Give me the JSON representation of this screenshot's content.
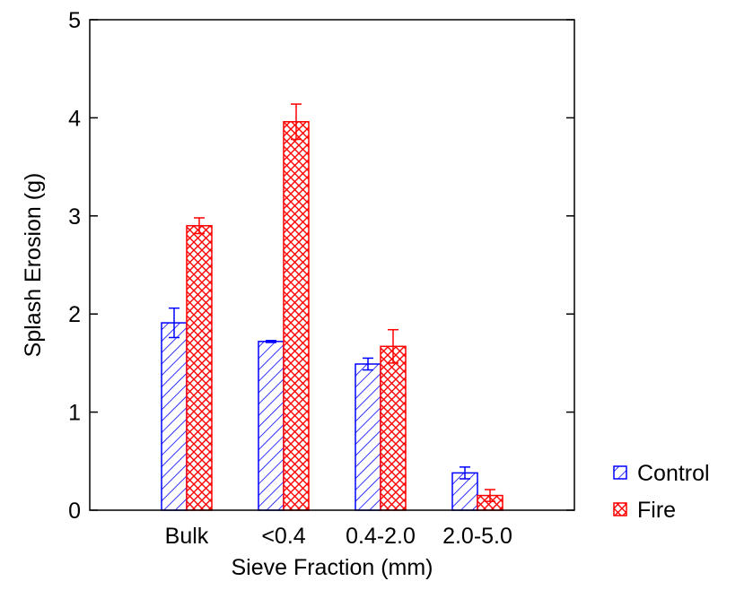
{
  "chart_data": {
    "type": "bar",
    "title": "",
    "xlabel": "Sieve Fraction (mm)",
    "ylabel": "Splash Erosion (g)",
    "ylim": [
      0,
      5
    ],
    "yticks": [
      0,
      1,
      2,
      3,
      4,
      5
    ],
    "categories": [
      "Bulk",
      "<0.4",
      "0.4-2.0",
      "2.0-5.0"
    ],
    "series": [
      {
        "name": "Control",
        "color": "#0000ff",
        "pattern": "diagonal-hatch",
        "values": [
          1.91,
          1.72,
          1.49,
          0.38
        ],
        "errors": [
          0.15,
          0.01,
          0.06,
          0.06
        ]
      },
      {
        "name": "Fire",
        "color": "#ff0000",
        "pattern": "crosshatch",
        "values": [
          2.9,
          3.96,
          1.67,
          0.15
        ],
        "errors": [
          0.08,
          0.18,
          0.17,
          0.06
        ]
      }
    ],
    "grid": false,
    "legend_position": "bottom-right outside plot"
  }
}
